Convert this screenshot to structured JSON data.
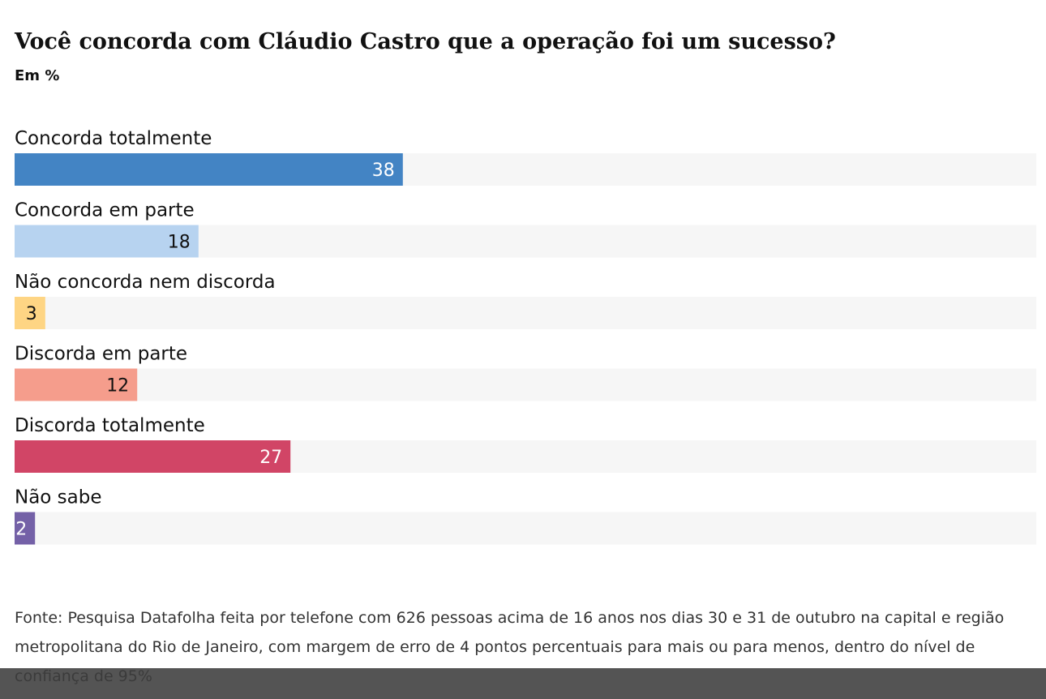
{
  "chart_data": {
    "type": "hbar",
    "title": "Você concorda com Cláudio Castro que a operação foi um sucesso?",
    "subtitle": "Em %",
    "categories": [
      "Concorda totalmente",
      "Concorda em parte",
      "Não concorda nem discorda",
      "Discorda em parte",
      "Discorda totalmente",
      "Não sabe"
    ],
    "values": [
      38,
      18,
      3,
      12,
      27,
      2
    ],
    "colors": [
      "#4384c4",
      "#b7d3f0",
      "#fed584",
      "#f59d8c",
      "#d14566",
      "#7461a7"
    ],
    "xlim": [
      0,
      100
    ],
    "source": "Fonte: Pesquisa Datafolha feita por telefone com 626 pessoas acima de 16 anos nos dias 30 e 31 de outubro na capital e região metropolitana do Rio de Janeiro, com margem de erro de 4 pontos percentuais para mais ou para menos, dentro do nível de confiança de 95%"
  }
}
